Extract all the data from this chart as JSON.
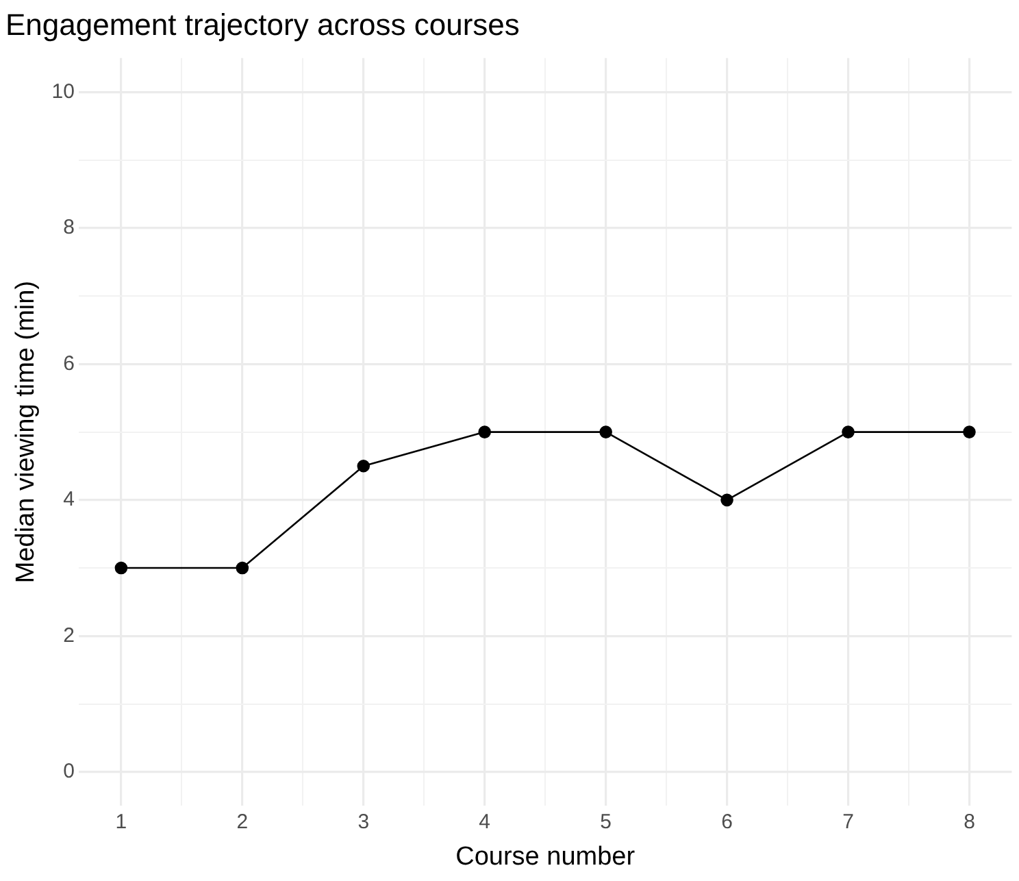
{
  "chart_data": {
    "type": "line",
    "title": "Engagement trajectory across courses",
    "xlabel": "Course number",
    "ylabel": "Median viewing time (min)",
    "x": [
      1,
      2,
      3,
      4,
      5,
      6,
      7,
      8
    ],
    "series": [
      {
        "color": "#000000",
        "values": [
          3,
          3,
          4.5,
          5,
          5,
          4,
          5,
          5
        ]
      }
    ],
    "xlim": [
      0.65,
      8.35
    ],
    "xticks": [
      1,
      {
        "value": 1.5,
        "label": null
      },
      2,
      {
        "value": 2.5,
        "label": null
      },
      3,
      {
        "value": 3.5,
        "label": null
      },
      4,
      {
        "value": 4.5,
        "label": null
      },
      5,
      {
        "value": 5.5,
        "label": null
      },
      6,
      {
        "value": 6.5,
        "label": null
      },
      7,
      {
        "value": 7.5,
        "label": null
      },
      8
    ],
    "ylim": [
      -0.5,
      10.5
    ],
    "yticks": [
      0,
      {
        "value": 1,
        "label": null
      },
      2,
      {
        "value": 3,
        "label": null
      },
      4,
      {
        "value": 5,
        "label": null
      },
      6,
      {
        "value": 7,
        "label": null
      },
      8,
      {
        "value": 9,
        "label": null
      },
      10
    ],
    "grid": true,
    "legend": false,
    "marker": "circle",
    "line_style": "solid"
  }
}
